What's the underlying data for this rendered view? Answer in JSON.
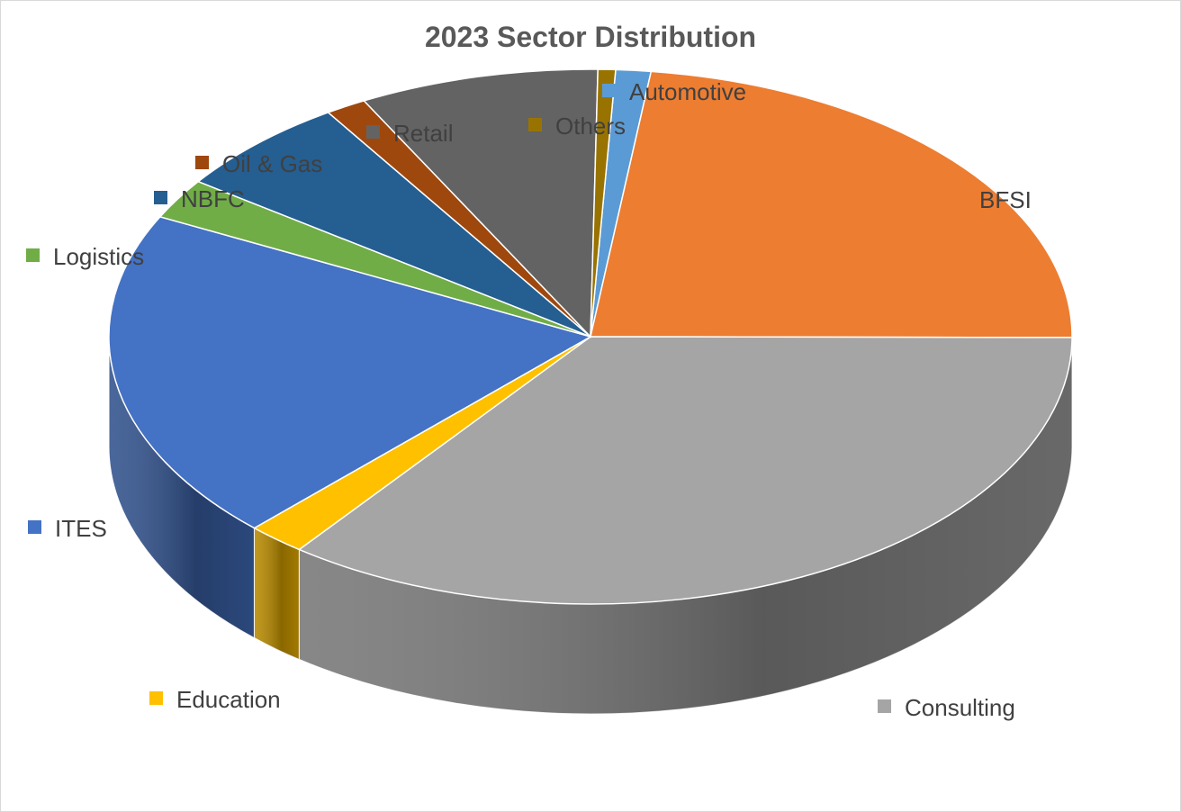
{
  "chart_data": {
    "type": "pie",
    "style": "3d",
    "title": "2023 Sector Distribution",
    "legend": "labels-beside-slices",
    "slices": [
      {
        "label": "Automotive",
        "value": 1.2,
        "color": "#5b9bd5"
      },
      {
        "label": "BFSI",
        "value": 23.5,
        "color": "#ed7d31"
      },
      {
        "label": "Consulting",
        "value": 36.0,
        "color": "#a5a5a5"
      },
      {
        "label": "Education",
        "value": 2.0,
        "color": "#ffc000"
      },
      {
        "label": "ITES",
        "value": 20.5,
        "color": "#4472c4"
      },
      {
        "label": "Logistics",
        "value": 2.5,
        "color": "#70ad47"
      },
      {
        "label": "NBFC",
        "value": 6.1,
        "color": "#255e91"
      },
      {
        "label": "Oil & Gas",
        "value": 1.4,
        "color": "#9e480e"
      },
      {
        "label": "Retail",
        "value": 8.2,
        "color": "#636363"
      },
      {
        "label": "Others",
        "value": 0.6,
        "color": "#997300"
      }
    ]
  }
}
